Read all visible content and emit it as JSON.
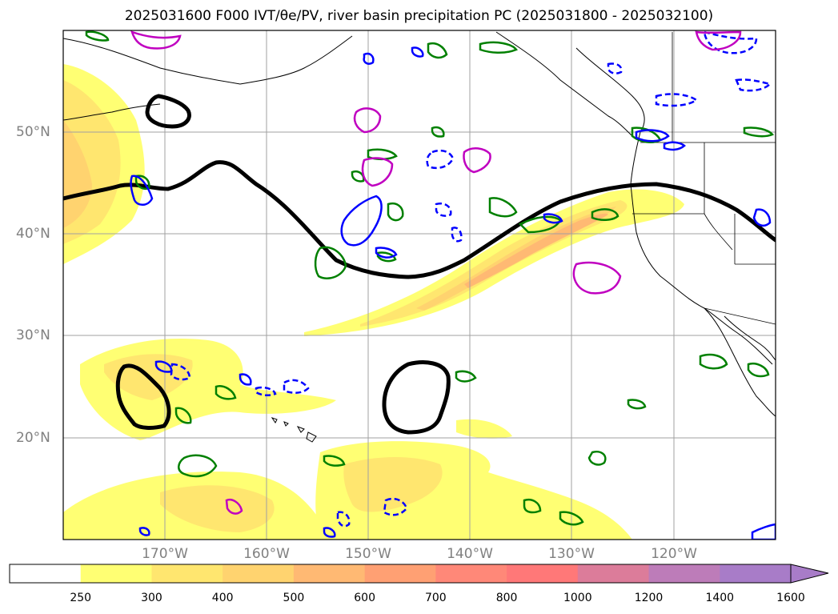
{
  "title": "2025031600 F000 IVT/θe/PV, river basin precipitation PC (2025031800 - 2025032100)",
  "map": {
    "latitude_labels": [
      "50°N",
      "40°N",
      "30°N",
      "20°N"
    ],
    "longitude_labels": [
      "170°W",
      "160°W",
      "150°W",
      "140°W",
      "130°W",
      "120°W"
    ],
    "contour_colors": {
      "theta_e": "#000000",
      "green_contours": "#008000",
      "blue_contours": "#0000ff",
      "magenta_contours": "#c000c0"
    },
    "ivt_shading_colors": [
      "#ffff73",
      "#ffe66f",
      "#ffd36f",
      "#ffb973",
      "#ffa073",
      "#ff8878",
      "#dc7c9a",
      "#bd7cb9",
      "#a87cc8"
    ]
  },
  "colorbar": {
    "ticks": [
      "250",
      "300",
      "400",
      "500",
      "600",
      "700",
      "800",
      "1000",
      "1200",
      "1400",
      "1600"
    ],
    "colors": [
      "#ffffff",
      "#ffff73",
      "#ffe66f",
      "#ffd36f",
      "#ffb973",
      "#ffa073",
      "#ff8878",
      "#ff7878",
      "#dc7c9a",
      "#bd7cb9",
      "#a87cc8"
    ],
    "extend": "max"
  }
}
